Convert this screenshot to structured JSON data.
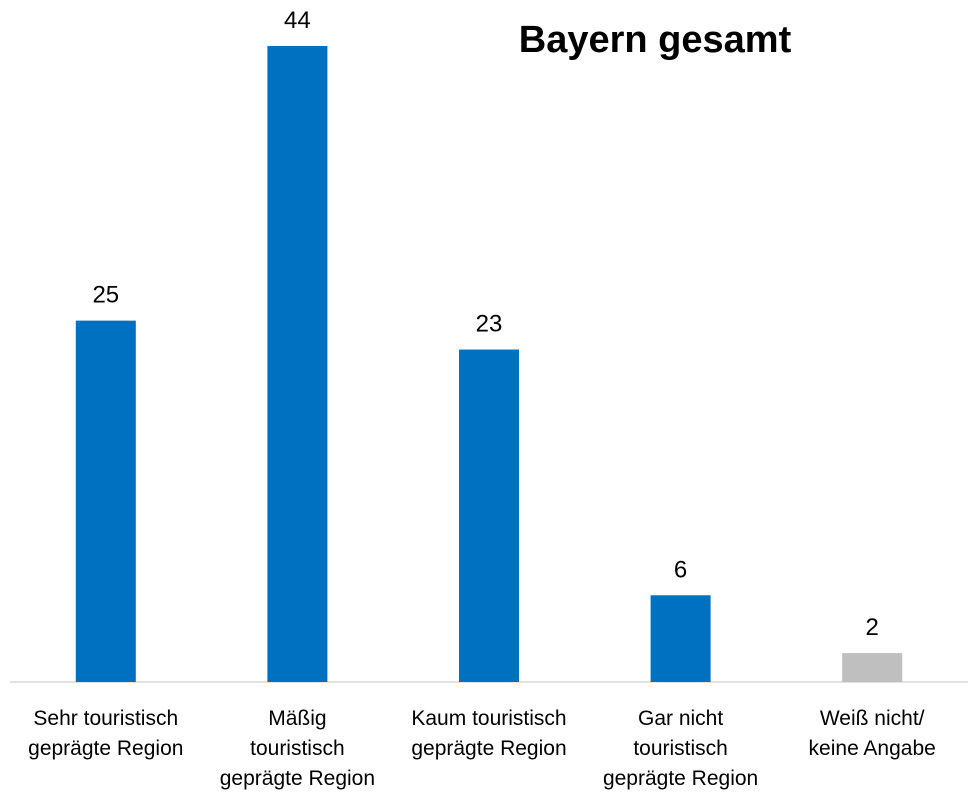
{
  "chart_data": {
    "type": "bar",
    "title": "Bayern gesamt",
    "categories": [
      "Sehr touristisch\ngeprägte Region",
      "Mäßig\ntouristisch\ngeprägte Region",
      "Kaum touristisch\ngeprägte Region",
      "Gar nicht\ntouristisch\ngeprägte Region",
      "Weiß nicht/\nkeine Angabe"
    ],
    "values": [
      25,
      44,
      23,
      6,
      2
    ],
    "colors": [
      "#0070c0",
      "#0070c0",
      "#0070c0",
      "#0070c0",
      "#bfbfbf"
    ]
  }
}
